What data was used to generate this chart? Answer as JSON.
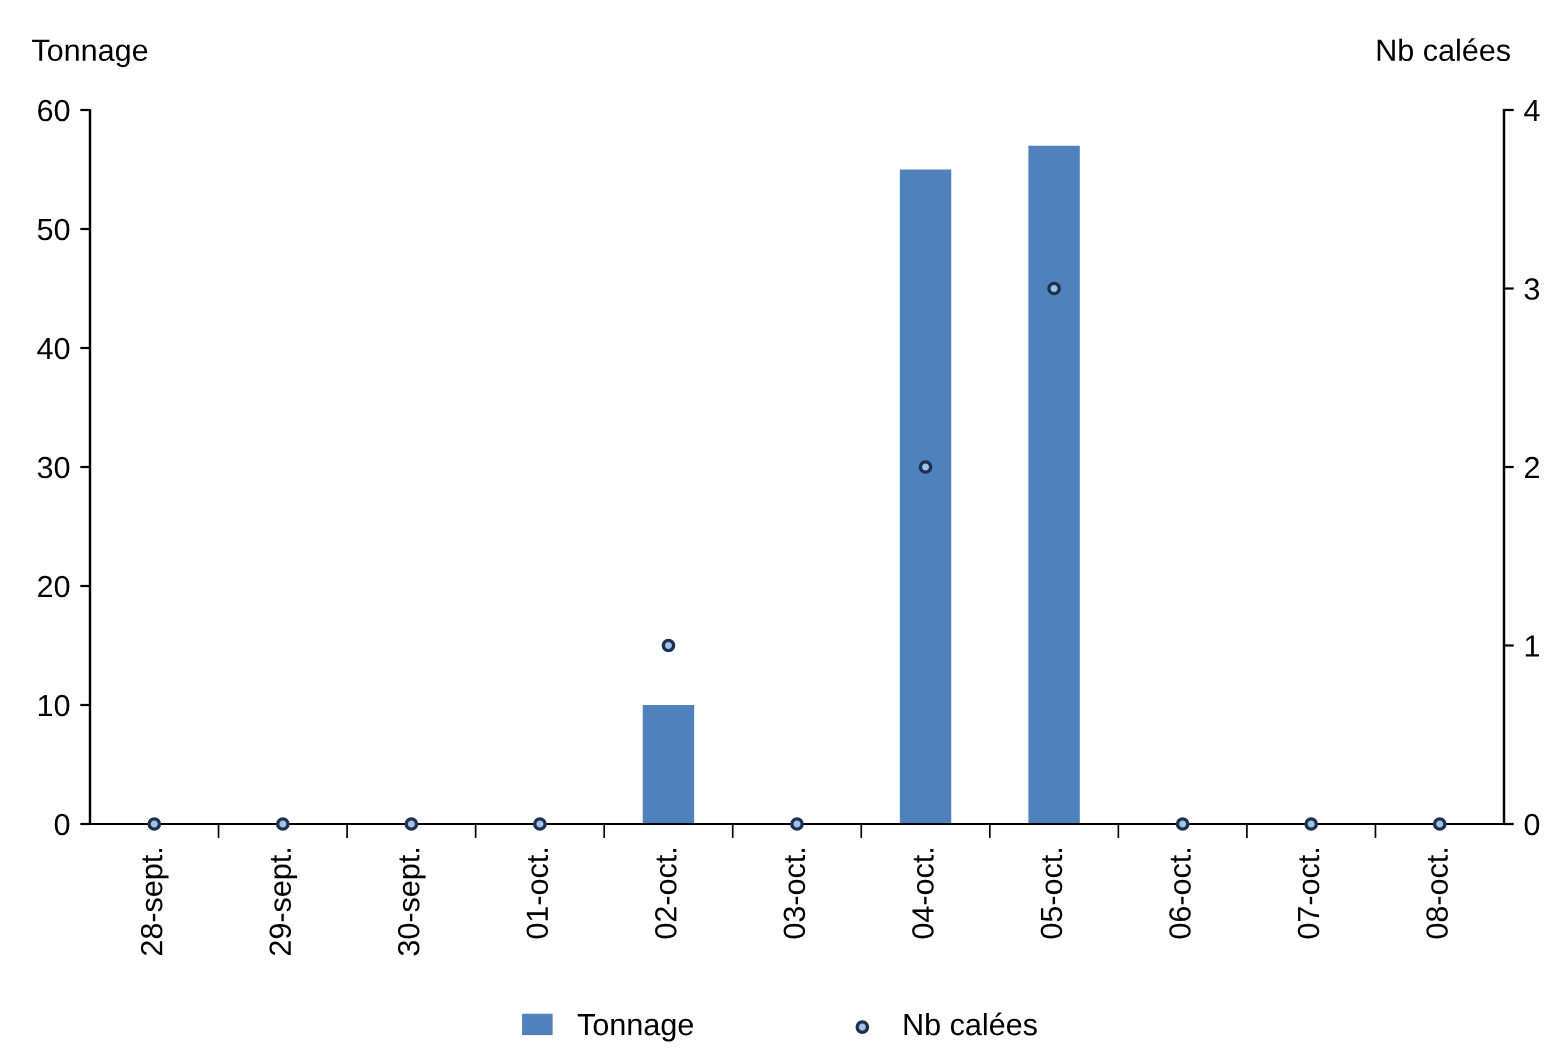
{
  "chart_data": {
    "type": "bar",
    "ylabel": "Tonnage",
    "y2label": "Nb calées",
    "categories": [
      "28-sept.",
      "29-sept.",
      "30-sept.",
      "01-oct.",
      "02-oct.",
      "03-oct.",
      "04-oct.",
      "05-oct.",
      "06-oct.",
      "07-oct.",
      "08-oct."
    ],
    "series": [
      {
        "name": "Tonnage",
        "color": "#4f81bd",
        "values": [
          0,
          0,
          0,
          0,
          10,
          0,
          55,
          57,
          0,
          0,
          0
        ]
      },
      {
        "name": "Nb calées",
        "type": "scatter",
        "axis": "y2",
        "color": "#1f3050",
        "marker": "circle",
        "values": [
          0,
          0,
          0,
          0,
          1,
          0,
          2,
          3,
          0,
          0,
          0
        ]
      }
    ],
    "ylim": [
      0,
      60
    ],
    "yticks": [
      0,
      10,
      20,
      30,
      40,
      50,
      60
    ],
    "y2lim": [
      0,
      4
    ],
    "y2ticks": [
      0,
      1,
      2,
      3,
      4
    ],
    "grid": false,
    "legend": "bottom"
  }
}
